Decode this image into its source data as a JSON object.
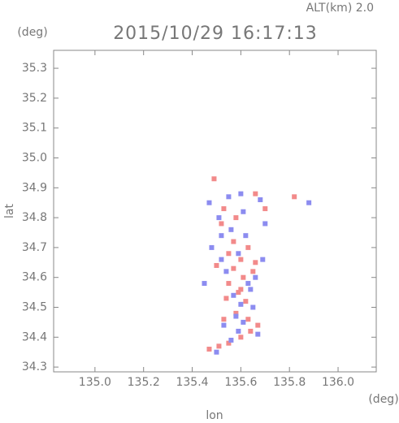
{
  "chart_data": {
    "type": "scatter",
    "title": "2015/10/29 16:17:13",
    "subtitle": "ALT(km) 2.0",
    "x_label": "lon",
    "y_label": "lat",
    "x_unit": "(deg)",
    "y_unit": "(deg)",
    "xlim": [
      134.83,
      136.157
    ],
    "ylim": [
      34.284,
      35.36
    ],
    "xticks": [
      {
        "value": 135.0,
        "label": "135.0"
      },
      135.2,
      135.4,
      135.6,
      135.8,
      {
        "value": 136.0,
        "label": "136.0"
      }
    ],
    "yticks": [
      34.3,
      34.4,
      34.5,
      34.6,
      34.7,
      34.8,
      34.9,
      {
        "value": 35.0,
        "label": "35.0"
      },
      35.1,
      35.2,
      35.3
    ],
    "series": [
      {
        "color": "#f28a8a",
        "x": [
          135.49,
          135.53,
          135.66,
          135.58,
          135.52,
          135.55,
          135.6,
          135.63,
          135.57,
          135.61,
          135.5,
          135.55,
          135.65,
          135.6,
          135.62,
          135.58,
          135.53,
          135.67,
          135.64,
          135.6,
          135.55,
          135.47,
          135.51,
          135.63,
          135.82,
          135.57,
          135.59,
          135.66,
          135.7,
          135.54
        ],
        "values": [
          34.93,
          34.83,
          34.88,
          34.8,
          34.78,
          34.68,
          34.66,
          34.7,
          34.63,
          34.6,
          34.64,
          34.58,
          34.62,
          34.56,
          34.52,
          34.48,
          34.46,
          34.44,
          34.42,
          34.4,
          34.38,
          34.36,
          34.37,
          34.46,
          34.87,
          34.72,
          34.55,
          34.65,
          34.83,
          34.53
        ]
      },
      {
        "color": "#8c8cf0",
        "x": [
          135.47,
          135.55,
          135.61,
          135.7,
          135.68,
          135.51,
          135.56,
          135.62,
          135.48,
          135.52,
          135.59,
          135.66,
          135.54,
          135.63,
          135.57,
          135.6,
          135.65,
          135.58,
          135.53,
          135.61,
          135.67,
          135.56,
          135.5,
          135.59,
          135.45,
          135.88,
          135.6,
          135.69,
          135.64,
          135.52
        ],
        "values": [
          34.85,
          34.87,
          34.82,
          34.78,
          34.86,
          34.8,
          34.76,
          34.74,
          34.7,
          34.66,
          34.68,
          34.6,
          34.62,
          34.58,
          34.54,
          34.51,
          34.5,
          34.47,
          34.44,
          34.45,
          34.41,
          34.39,
          34.35,
          34.42,
          34.58,
          34.85,
          34.88,
          34.66,
          34.56,
          34.74
        ]
      }
    ]
  }
}
